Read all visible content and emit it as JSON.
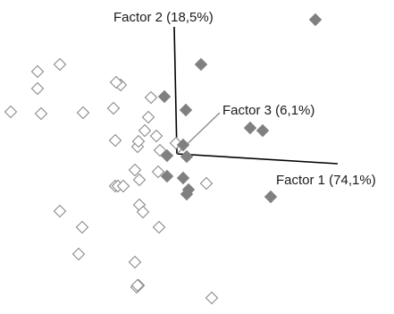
{
  "chart_data": {
    "type": "scatter",
    "projection": "3d-biplot",
    "axes": [
      {
        "name": "Factor 1",
        "label": "Factor 1 (74,1%)"
      },
      {
        "name": "Factor 2",
        "label": "Factor 2 (18,5%)"
      },
      {
        "name": "Factor 3",
        "label": "Factor 3 (6,1%)"
      }
    ],
    "grid": false,
    "series": [
      {
        "marker": "open-diamond",
        "color": "#8a8a8a",
        "points": [
          [
            -156,
            92
          ],
          [
            -131,
            100
          ],
          [
            -156,
            73
          ],
          [
            -186,
            47
          ],
          [
            -152,
            45
          ],
          [
            -105,
            46
          ],
          [
            -71,
            51
          ],
          [
            -63,
            77
          ],
          [
            -68,
            80
          ],
          [
            -29,
            63
          ],
          [
            -32,
            41
          ],
          [
            -36,
            26
          ],
          [
            -23,
            20
          ],
          [
            -69,
            15
          ],
          [
            -44,
            8
          ],
          [
            -43,
            14
          ],
          [
            -1,
            12
          ],
          [
            -19,
            4
          ],
          [
            -47,
            -18
          ],
          [
            -21,
            -20
          ],
          [
            -42,
            -29
          ],
          [
            -69,
            -36
          ],
          [
            -66,
            -36
          ],
          [
            -60,
            -36
          ],
          [
            -131,
            -64
          ],
          [
            -42,
            -57
          ],
          [
            -106,
            -82
          ],
          [
            -38,
            -65
          ],
          [
            33,
            -33
          ],
          [
            -20,
            -82
          ],
          [
            -110,
            -112
          ],
          [
            -47,
            -121
          ],
          [
            -43,
            -147
          ],
          [
            -45,
            -149
          ],
          [
            -44,
            -147
          ],
          [
            39,
            -161
          ]
        ]
      },
      {
        "marker": "filled-diamond",
        "color": "#808080",
        "points": [
          [
            155,
            150
          ],
          [
            27,
            100
          ],
          [
            -14,
            64
          ],
          [
            10,
            49
          ],
          [
            7,
            10
          ],
          [
            -11,
            -2
          ],
          [
            11,
            -3
          ],
          [
            82,
            29
          ],
          [
            96,
            26
          ],
          [
            7,
            -27
          ],
          [
            13,
            -40
          ],
          [
            11,
            -45
          ],
          [
            -11,
            -25
          ],
          [
            105,
            -48
          ]
        ]
      }
    ]
  }
}
